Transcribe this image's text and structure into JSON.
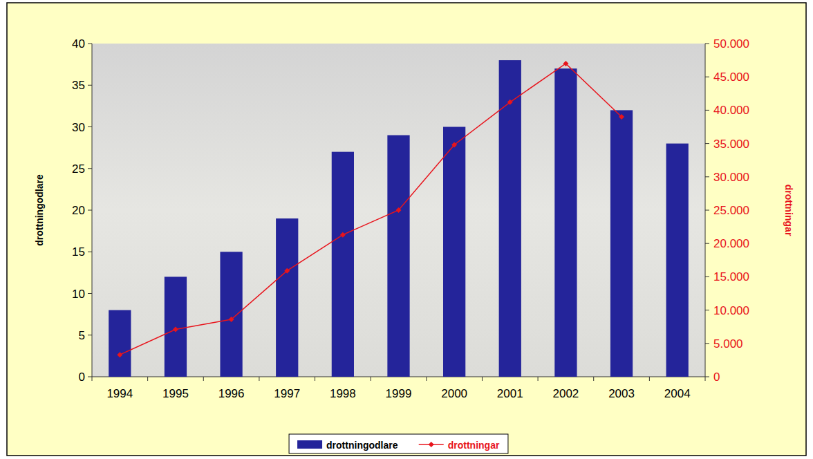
{
  "chart_data": {
    "type": "bar",
    "categories": [
      "1994",
      "1995",
      "1996",
      "1997",
      "1998",
      "1999",
      "2000",
      "2001",
      "2002",
      "2003",
      "2004"
    ],
    "y_label": "drottningodlare",
    "y2_label": "drottningar",
    "ylim": [
      0,
      40
    ],
    "yticks": [
      0,
      5,
      10,
      15,
      20,
      25,
      30,
      35,
      40
    ],
    "y2lim": [
      0,
      50000
    ],
    "y2ticks": [
      0,
      {
        "value": 5000,
        "label": "5.000"
      },
      {
        "value": 10000,
        "label": "10.000"
      },
      {
        "value": 15000,
        "label": "15.000"
      },
      {
        "value": 20000,
        "label": "20.000"
      },
      {
        "value": 25000,
        "label": "25.000"
      },
      {
        "value": 30000,
        "label": "30.000"
      },
      {
        "value": 35000,
        "label": "35.000"
      },
      {
        "value": 40000,
        "label": "40.000"
      },
      {
        "value": 45000,
        "label": "45.000"
      },
      {
        "value": 50000,
        "label": "50.000"
      }
    ],
    "legend": "bottom",
    "grid": false,
    "series": [
      {
        "name": "drottningodlare",
        "type": "bar",
        "color": "#24249a",
        "values": [
          8,
          12,
          15,
          19,
          27,
          29,
          30,
          38,
          37,
          32,
          28
        ]
      },
      {
        "name": "drottningar",
        "type": "line",
        "axis": "y2",
        "color": "#e8141c",
        "marker": "diamond",
        "values": [
          3300,
          7100,
          8600,
          15900,
          21300,
          25000,
          34800,
          41200,
          47000,
          39000,
          null
        ]
      }
    ]
  }
}
